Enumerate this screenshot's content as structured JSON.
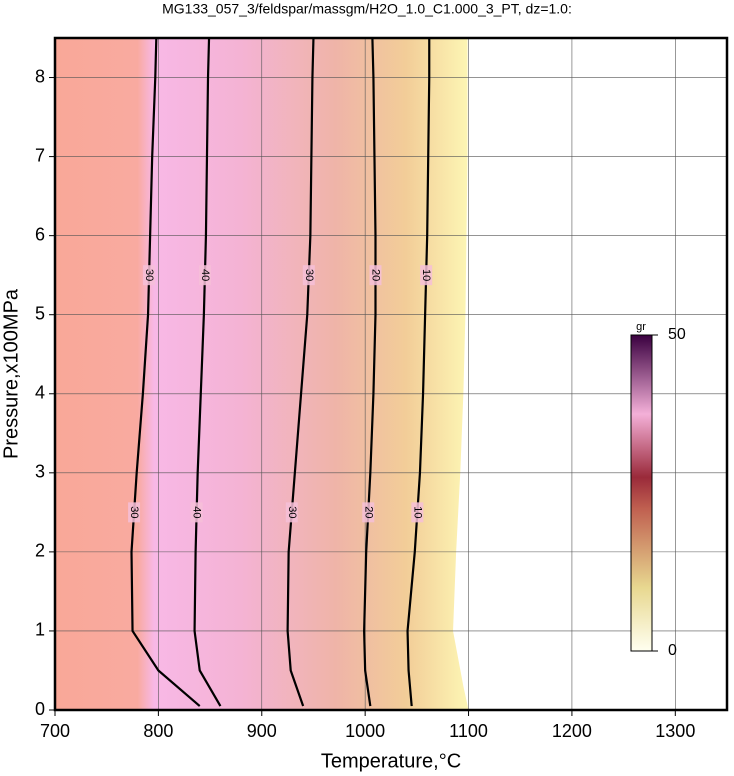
{
  "chart_data": {
    "type": "contour",
    "title": "MG133_057_3/feldspar/massgm/H2O_1.0_C1.000_3_PT, dz=1.0:",
    "x_label": "Temperature,°C",
    "y_label": "Pressure,x100MPa",
    "xlim": [
      700,
      1350
    ],
    "xticks": [
      700,
      800,
      900,
      1000,
      1100,
      1200,
      1300
    ],
    "ylim": [
      0,
      8.5
    ],
    "yticks": [
      0,
      1,
      2,
      3,
      4,
      5,
      6,
      7,
      8
    ],
    "grid": true,
    "field_edge": {
      "x": [
        1100,
        1095,
        1085,
        1088,
        1092,
        1095,
        1097,
        1098,
        1099,
        1099,
        1099
      ],
      "y": [
        0,
        0.3,
        1,
        2,
        3,
        4,
        5,
        6,
        7,
        8,
        8.5
      ]
    },
    "contours": [
      {
        "level": 30,
        "x": [
          840,
          800,
          775,
          774,
          779,
          785,
          790,
          792,
          794,
          797,
          798
        ],
        "y": [
          0.05,
          0.5,
          1,
          2,
          3,
          4,
          5,
          6,
          7,
          8,
          8.5
        ]
      },
      {
        "level": 40,
        "x": [
          860,
          840,
          835,
          836,
          838,
          841,
          844,
          846,
          847,
          848,
          849
        ],
        "y": [
          0.05,
          0.5,
          1,
          2,
          3,
          4,
          5,
          6,
          7,
          8,
          8.5
        ]
      },
      {
        "level": 30,
        "x": [
          940,
          928,
          925,
          926,
          932,
          938,
          944,
          947,
          948,
          949,
          950
        ],
        "y": [
          0.05,
          0.5,
          1,
          2,
          3,
          4,
          5,
          6,
          7,
          8,
          8.5
        ]
      },
      {
        "level": 20,
        "x": [
          1005,
          1000,
          999,
          1001,
          1005,
          1008,
          1010,
          1010,
          1009,
          1008,
          1007
        ],
        "y": [
          0.05,
          0.5,
          1,
          2,
          3,
          4,
          5,
          6,
          7,
          8,
          8.5
        ]
      },
      {
        "level": 10,
        "x": [
          1045,
          1042,
          1041,
          1048,
          1053,
          1056,
          1058,
          1060,
          1061,
          1062,
          1062
        ],
        "y": [
          0.05,
          0.5,
          1,
          2,
          3,
          4,
          5,
          6,
          7,
          8,
          8.5
        ]
      }
    ],
    "colorbar": {
      "label": "gr",
      "lim": [
        0,
        50
      ],
      "ticks": [
        0,
        50
      ]
    }
  }
}
